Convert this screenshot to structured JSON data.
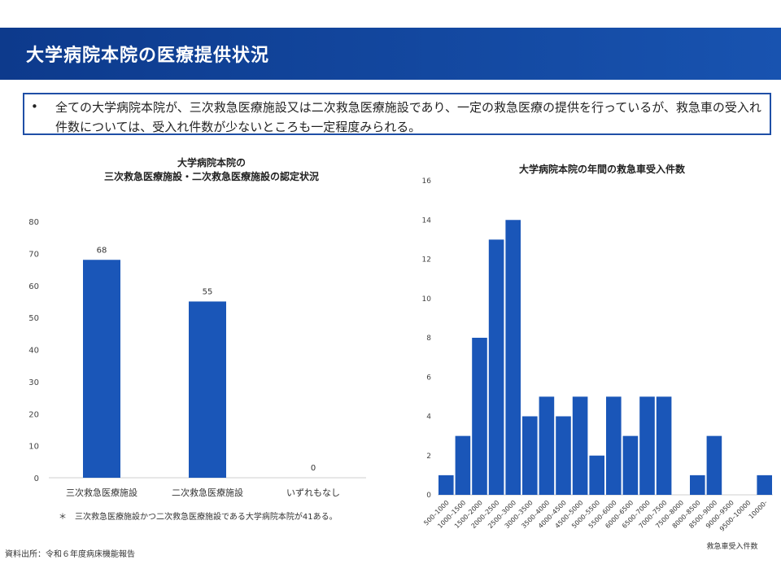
{
  "header": {
    "title": "大学病院本院の医療提供状況"
  },
  "summary": {
    "bullet": "•",
    "text": "全ての大学病院本院が、三次救急医療施設又は二次救急医療施設であり、一定の救急医療の提供を行っているが、救急車の受入れ件数については、受入れ件数が少ないところも一定程度みられる。"
  },
  "colors": {
    "header": "#1547a0",
    "bar": "#1a56b8",
    "border": "#1f4fa6"
  },
  "chart_data": [
    {
      "type": "bar",
      "title_line1": "大学病院本院の",
      "title_line2": "三次救急医療施設・二次救急医療施設の認定状況",
      "categories": [
        "三次救急医療施設",
        "二次救急医療施設",
        "いずれもなし"
      ],
      "values": [
        68,
        55,
        0
      ],
      "ylim": [
        0,
        80
      ],
      "yticks": [
        0,
        10,
        20,
        30,
        40,
        50,
        60,
        70,
        80
      ],
      "data_labels": true,
      "grid": false
    },
    {
      "type": "bar",
      "title": "大学病院本院の年間の救急車受入件数",
      "xlabel": "救急車受入件数",
      "categories": [
        "500–1000",
        "1000–1500",
        "1500–2000",
        "2000–2500",
        "2500–3000",
        "3000–3500",
        "3500–4000",
        "4000–4500",
        "4500–5000",
        "5000–5500",
        "5500–6000",
        "6000–6500",
        "6500–7000",
        "7000–7500",
        "7500–8000",
        "8000–8500",
        "8500–9000",
        "9000–9500",
        "9500–10000",
        "10000-"
      ],
      "values": [
        1,
        3,
        8,
        13,
        14,
        4,
        5,
        4,
        5,
        2,
        5,
        3,
        5,
        5,
        0,
        1,
        3,
        0,
        0,
        1
      ],
      "ylim": [
        0,
        16
      ],
      "yticks": [
        0,
        2,
        4,
        6,
        8,
        10,
        12,
        14,
        16
      ],
      "grid": false
    }
  ],
  "footnote": "＊　三次救急医療施設かつ二次救急医療施設である大学病院本院が41ある。",
  "source": "資料出所：令和６年度病床機能報告"
}
